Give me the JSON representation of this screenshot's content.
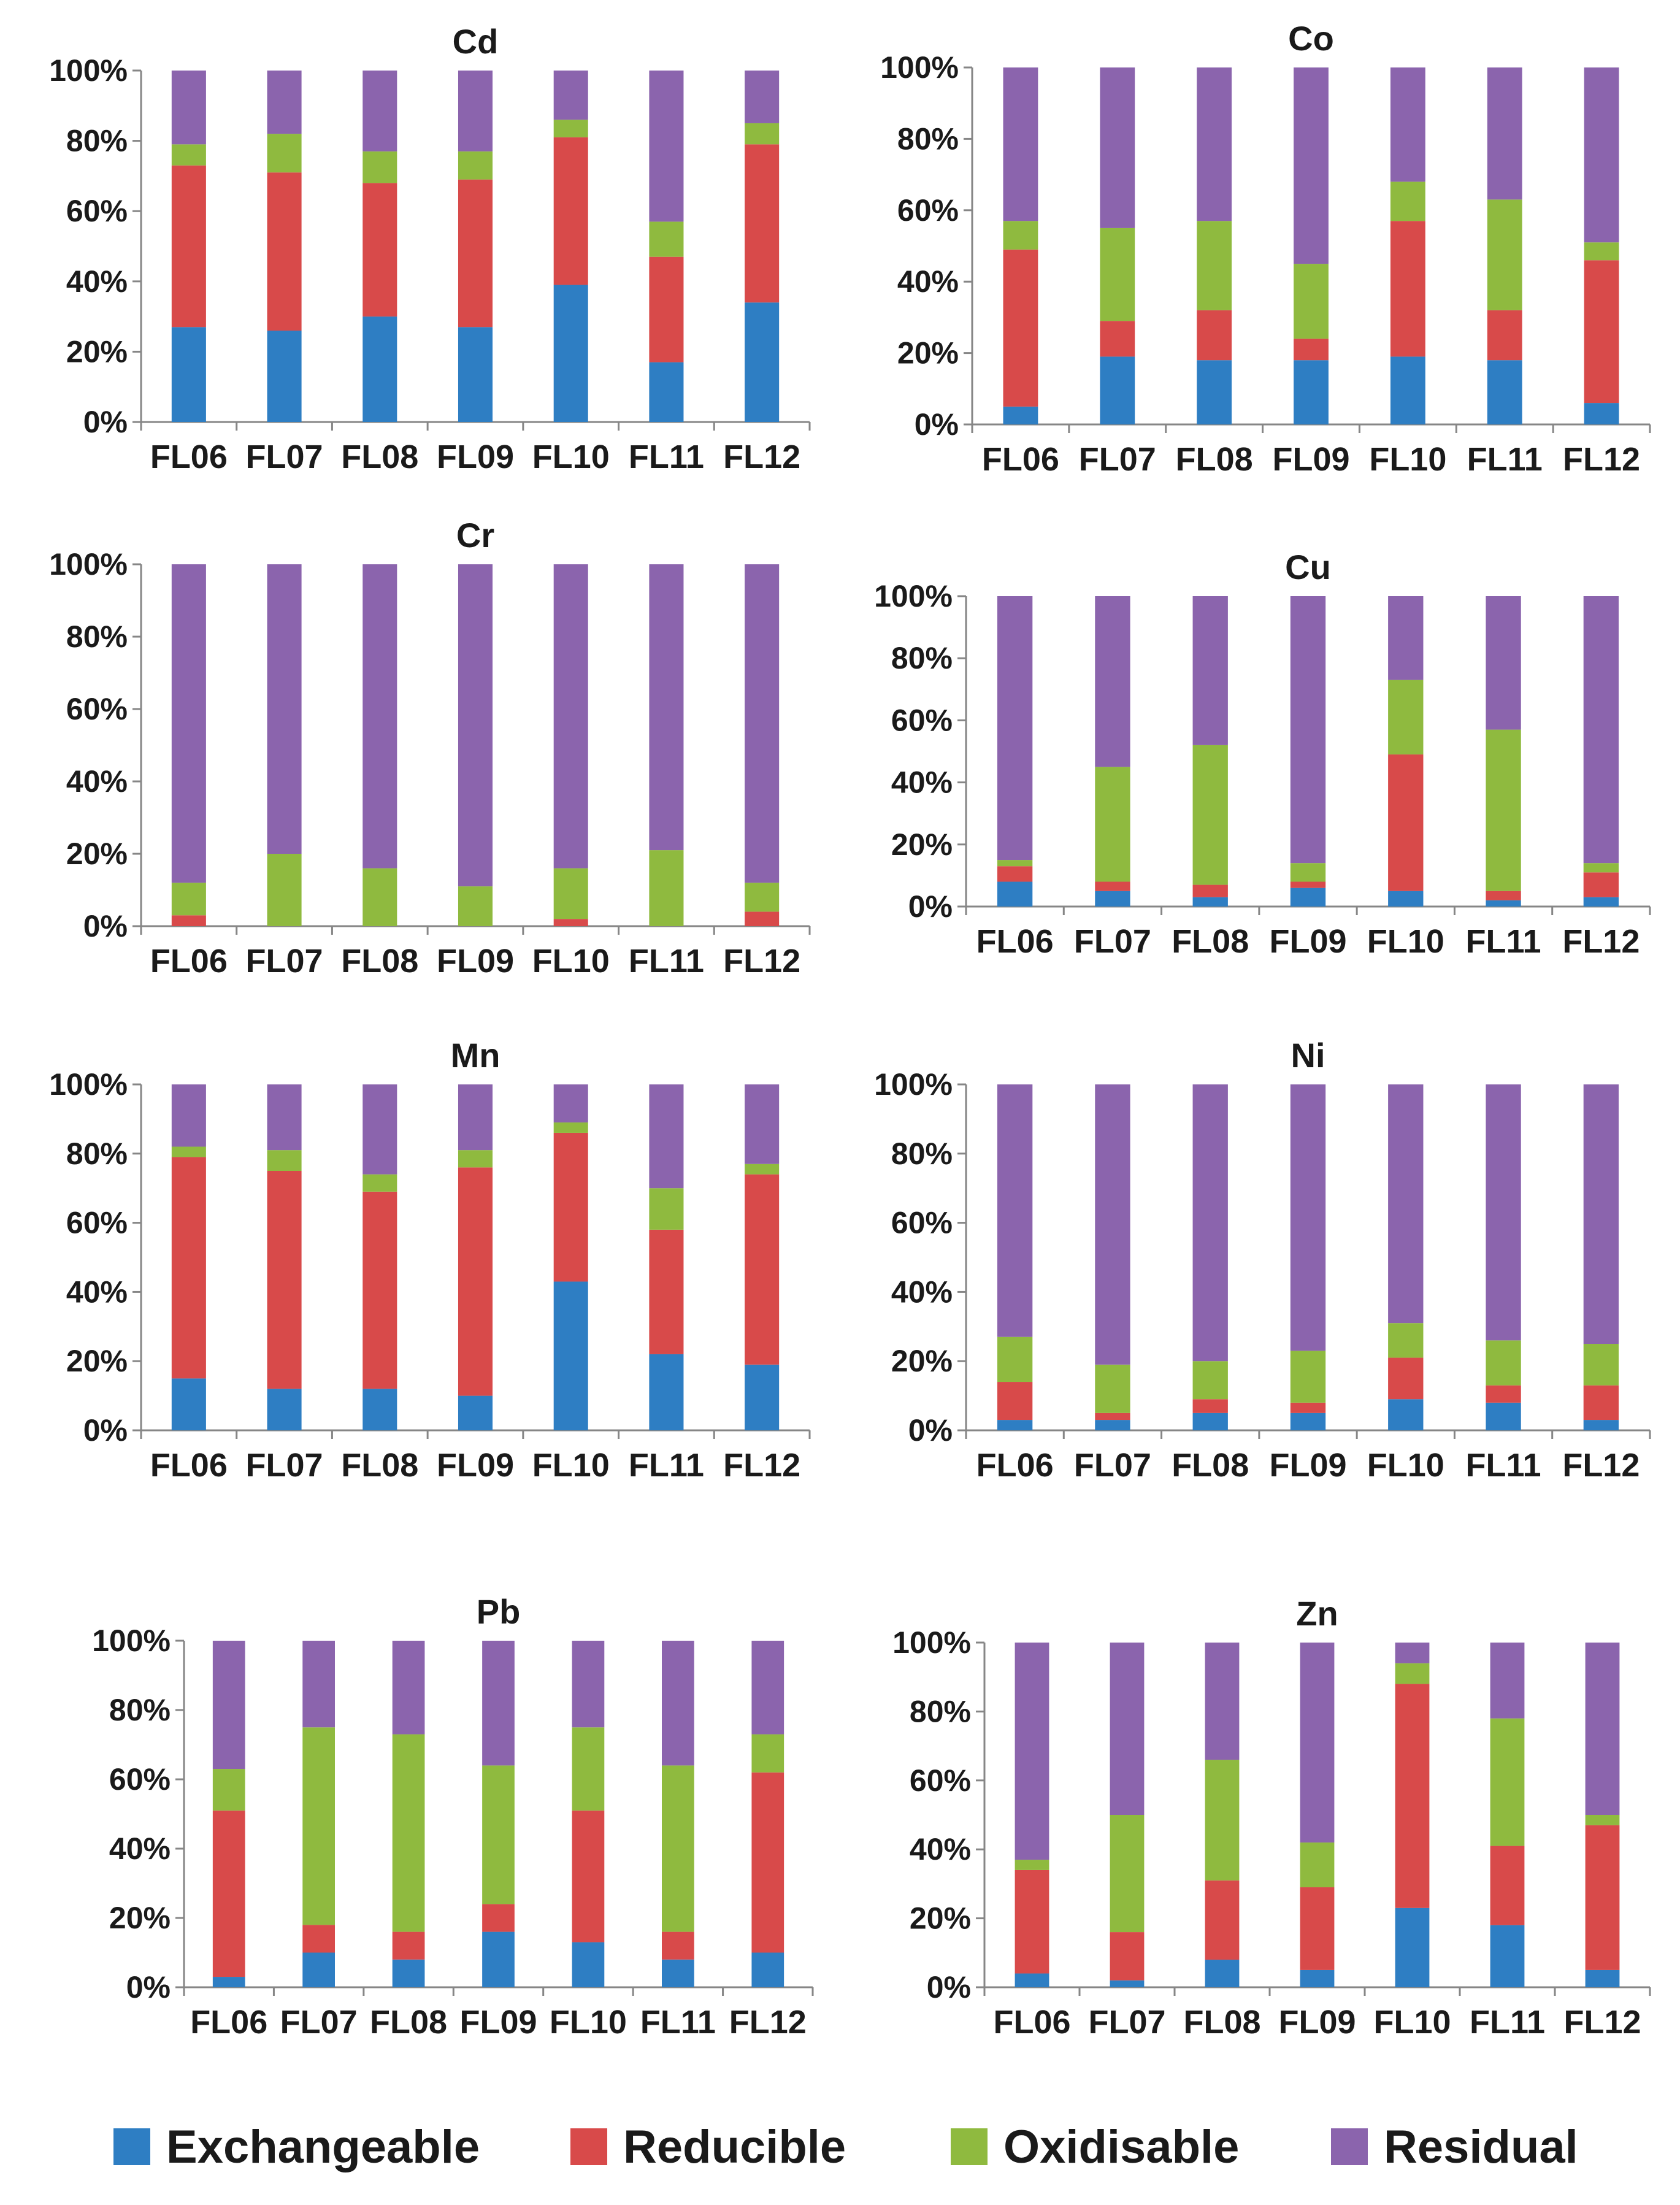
{
  "figure": {
    "colors": {
      "Exchangeable": "#2e7ec3",
      "Reducible": "#d84a4a",
      "Oxidisable": "#8fba3f",
      "Residual": "#8b64ad"
    }
  },
  "chart_data": [
    {
      "type": "bar",
      "stacked": true,
      "title": "Cd",
      "categories": [
        "FL06",
        "FL07",
        "FL08",
        "FL09",
        "FL10",
        "FL11",
        "FL12"
      ],
      "y_ticks": [
        "0%",
        "20%",
        "40%",
        "60%",
        "80%",
        "100%"
      ],
      "ylim": [
        0,
        100
      ],
      "series": [
        {
          "name": "Exchangeable",
          "values": [
            27,
            26,
            30,
            27,
            39,
            17,
            34
          ]
        },
        {
          "name": "Reducible",
          "values": [
            46,
            45,
            38,
            42,
            42,
            30,
            45
          ]
        },
        {
          "name": "Oxidisable",
          "values": [
            6,
            11,
            9,
            8,
            5,
            10,
            6
          ]
        },
        {
          "name": "Residual",
          "values": [
            21,
            18,
            23,
            23,
            14,
            43,
            15
          ]
        }
      ]
    },
    {
      "type": "bar",
      "stacked": true,
      "title": "Co",
      "categories": [
        "FL06",
        "FL07",
        "FL08",
        "FL09",
        "FL10",
        "FL11",
        "FL12"
      ],
      "y_ticks": [
        "0%",
        "20%",
        "40%",
        "60%",
        "80%",
        "100%"
      ],
      "ylim": [
        0,
        100
      ],
      "series": [
        {
          "name": "Exchangeable",
          "values": [
            5,
            19,
            18,
            18,
            19,
            18,
            6
          ]
        },
        {
          "name": "Reducible",
          "values": [
            44,
            10,
            14,
            6,
            38,
            14,
            40
          ]
        },
        {
          "name": "Oxidisable",
          "values": [
            8,
            26,
            25,
            21,
            11,
            31,
            5
          ]
        },
        {
          "name": "Residual",
          "values": [
            43,
            45,
            43,
            55,
            32,
            37,
            49
          ]
        }
      ]
    },
    {
      "type": "bar",
      "stacked": true,
      "title": "Cr",
      "categories": [
        "FL06",
        "FL07",
        "FL08",
        "FL09",
        "FL10",
        "FL11",
        "FL12"
      ],
      "y_ticks": [
        "0%",
        "20%",
        "40%",
        "60%",
        "80%",
        "100%"
      ],
      "ylim": [
        0,
        100
      ],
      "series": [
        {
          "name": "Exchangeable",
          "values": [
            0,
            0,
            0,
            0,
            0,
            0,
            0
          ]
        },
        {
          "name": "Reducible",
          "values": [
            3,
            0,
            0,
            0,
            2,
            0,
            4
          ]
        },
        {
          "name": "Oxidisable",
          "values": [
            9,
            20,
            16,
            11,
            14,
            21,
            8
          ]
        },
        {
          "name": "Residual",
          "values": [
            88,
            80,
            84,
            89,
            84,
            79,
            88
          ]
        }
      ]
    },
    {
      "type": "bar",
      "stacked": true,
      "title": "Cu",
      "categories": [
        "FL06",
        "FL07",
        "FL08",
        "FL09",
        "FL10",
        "FL11",
        "FL12"
      ],
      "y_ticks": [
        "0%",
        "20%",
        "40%",
        "60%",
        "80%",
        "100%"
      ],
      "ylim": [
        0,
        100
      ],
      "series": [
        {
          "name": "Exchangeable",
          "values": [
            8,
            5,
            3,
            6,
            5,
            2,
            3
          ]
        },
        {
          "name": "Reducible",
          "values": [
            5,
            3,
            4,
            2,
            44,
            3,
            8
          ]
        },
        {
          "name": "Oxidisable",
          "values": [
            2,
            37,
            45,
            6,
            24,
            52,
            3
          ]
        },
        {
          "name": "Residual",
          "values": [
            85,
            55,
            48,
            86,
            27,
            43,
            86
          ]
        }
      ]
    },
    {
      "type": "bar",
      "stacked": true,
      "title": "Mn",
      "categories": [
        "FL06",
        "FL07",
        "FL08",
        "FL09",
        "FL10",
        "FL11",
        "FL12"
      ],
      "y_ticks": [
        "0%",
        "20%",
        "40%",
        "60%",
        "80%",
        "100%"
      ],
      "ylim": [
        0,
        100
      ],
      "series": [
        {
          "name": "Exchangeable",
          "values": [
            15,
            12,
            12,
            10,
            43,
            22,
            19
          ]
        },
        {
          "name": "Reducible",
          "values": [
            64,
            63,
            57,
            66,
            43,
            36,
            55
          ]
        },
        {
          "name": "Oxidisable",
          "values": [
            3,
            6,
            5,
            5,
            3,
            12,
            3
          ]
        },
        {
          "name": "Residual",
          "values": [
            18,
            19,
            26,
            19,
            11,
            30,
            23
          ]
        }
      ]
    },
    {
      "type": "bar",
      "stacked": true,
      "title": "Ni",
      "categories": [
        "FL06",
        "FL07",
        "FL08",
        "FL09",
        "FL10",
        "FL11",
        "FL12"
      ],
      "y_ticks": [
        "0%",
        "20%",
        "40%",
        "60%",
        "80%",
        "100%"
      ],
      "ylim": [
        0,
        100
      ],
      "series": [
        {
          "name": "Exchangeable",
          "values": [
            3,
            3,
            5,
            5,
            9,
            8,
            3
          ]
        },
        {
          "name": "Reducible",
          "values": [
            11,
            2,
            4,
            3,
            12,
            5,
            10
          ]
        },
        {
          "name": "Oxidisable",
          "values": [
            13,
            14,
            11,
            15,
            10,
            13,
            12
          ]
        },
        {
          "name": "Residual",
          "values": [
            73,
            81,
            80,
            77,
            69,
            74,
            75
          ]
        }
      ]
    },
    {
      "type": "bar",
      "stacked": true,
      "title": "Pb",
      "categories": [
        "FL06",
        "FL07",
        "FL08",
        "FL09",
        "FL10",
        "FL11",
        "FL12"
      ],
      "y_ticks": [
        "0%",
        "20%",
        "40%",
        "60%",
        "80%",
        "100%"
      ],
      "ylim": [
        0,
        100
      ],
      "series": [
        {
          "name": "Exchangeable",
          "values": [
            3,
            10,
            8,
            16,
            13,
            8,
            10
          ]
        },
        {
          "name": "Reducible",
          "values": [
            48,
            8,
            8,
            8,
            38,
            8,
            52
          ]
        },
        {
          "name": "Oxidisable",
          "values": [
            12,
            57,
            57,
            40,
            24,
            48,
            11
          ]
        },
        {
          "name": "Residual",
          "values": [
            37,
            25,
            27,
            36,
            25,
            36,
            27
          ]
        }
      ]
    },
    {
      "type": "bar",
      "stacked": true,
      "title": "Zn",
      "categories": [
        "FL06",
        "FL07",
        "FL08",
        "FL09",
        "FL10",
        "FL11",
        "FL12"
      ],
      "y_ticks": [
        "0%",
        "20%",
        "40%",
        "60%",
        "80%",
        "100%"
      ],
      "ylim": [
        0,
        100
      ],
      "series": [
        {
          "name": "Exchangeable",
          "values": [
            4,
            2,
            8,
            5,
            23,
            18,
            5
          ]
        },
        {
          "name": "Reducible",
          "values": [
            30,
            14,
            23,
            24,
            65,
            23,
            42
          ]
        },
        {
          "name": "Oxidisable",
          "values": [
            3,
            34,
            35,
            13,
            6,
            37,
            3
          ]
        },
        {
          "name": "Residual",
          "values": [
            63,
            50,
            34,
            58,
            6,
            22,
            50
          ]
        }
      ]
    }
  ],
  "legend": {
    "items": [
      {
        "label": "Exchangeable",
        "color": "#2e7ec3"
      },
      {
        "label": "Reducible",
        "color": "#d84a4a"
      },
      {
        "label": "Oxidisable",
        "color": "#8fba3f"
      },
      {
        "label": "Residual",
        "color": "#8b64ad"
      }
    ]
  }
}
